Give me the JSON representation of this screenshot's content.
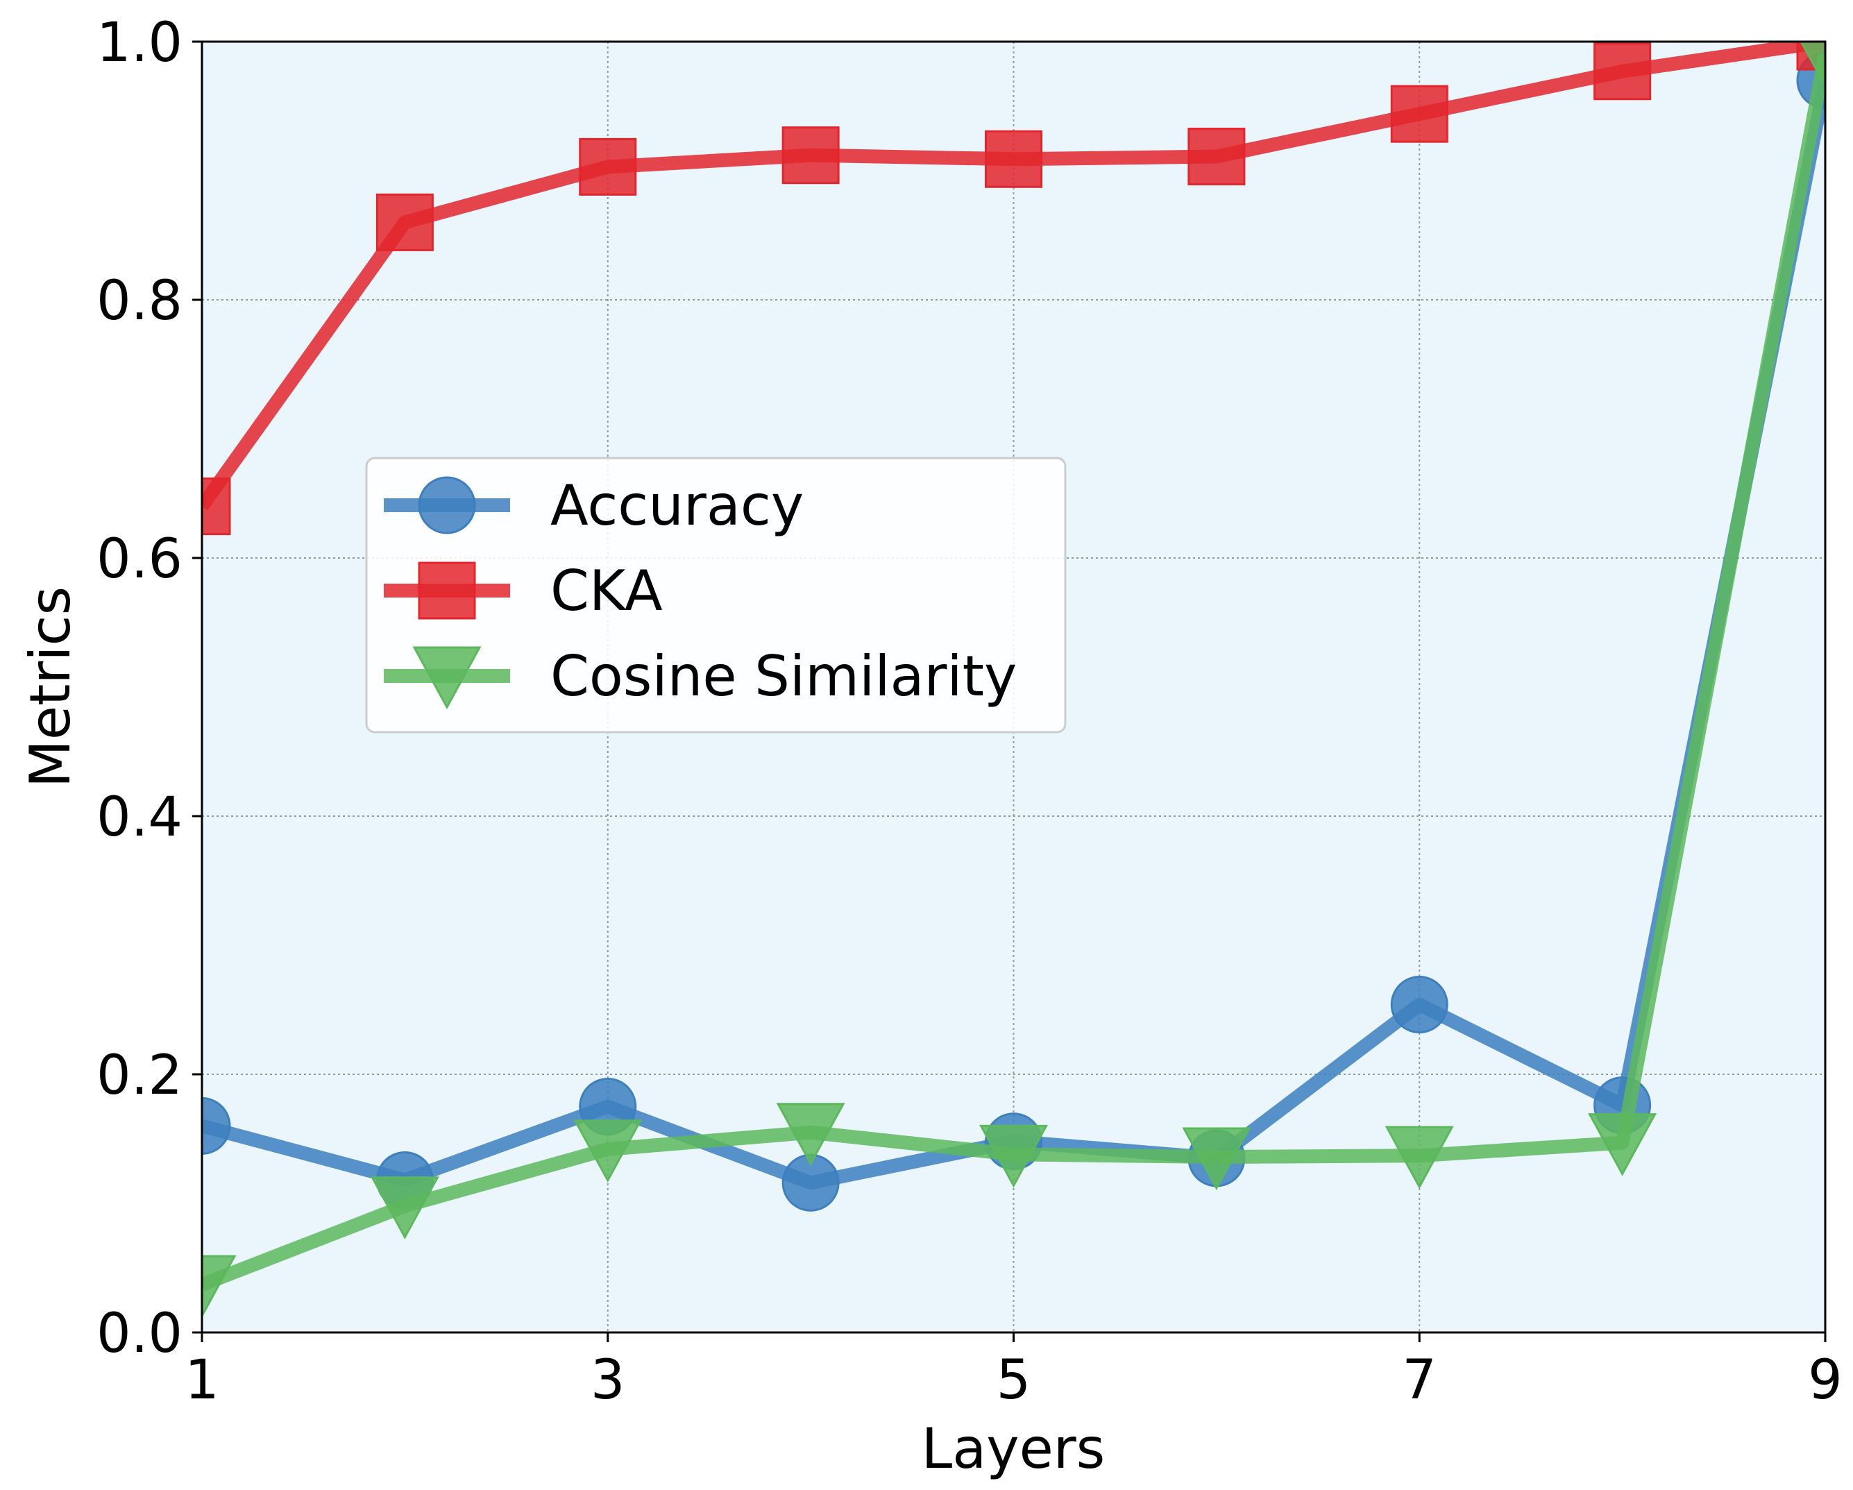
{
  "chart_data": {
    "type": "line",
    "xlabel": "Layers",
    "ylabel": "Metrics",
    "xlim": [
      1,
      9
    ],
    "ylim": [
      0.0,
      1.0
    ],
    "x_ticks": [
      "1",
      "3",
      "5",
      "7",
      "9"
    ],
    "x_tick_values": [
      1,
      3,
      5,
      7,
      9
    ],
    "y_ticks": [
      "0.0",
      "0.2",
      "0.4",
      "0.6",
      "0.8",
      "1.0"
    ],
    "y_tick_values": [
      0.0,
      0.2,
      0.4,
      0.6,
      0.8,
      1.0
    ],
    "grid": true,
    "legend_position": "center-left",
    "background_color": "#ebf6fc",
    "x": [
      1,
      2,
      3,
      4,
      5,
      6,
      7,
      8,
      9
    ],
    "series": [
      {
        "name": "Accuracy",
        "marker": "circle",
        "color": "#3d7fbf",
        "values": [
          0.16,
          0.118,
          0.175,
          0.116,
          0.148,
          0.135,
          0.254,
          0.176,
          0.97
        ]
      },
      {
        "name": "CKA",
        "marker": "square",
        "color": "#e3262d",
        "values": [
          0.64,
          0.86,
          0.903,
          0.912,
          0.909,
          0.911,
          0.944,
          0.977,
          1.0
        ]
      },
      {
        "name": "Cosine Similarity",
        "marker": "triangle-down",
        "color": "#5cb85c",
        "values": [
          0.037,
          0.098,
          0.142,
          0.155,
          0.138,
          0.136,
          0.137,
          0.147,
          0.99
        ]
      }
    ]
  }
}
